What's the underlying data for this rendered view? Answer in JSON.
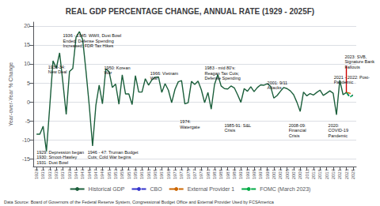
{
  "chart_data": {
    "type": "line",
    "title": "REAL GDP PERCENTAGE CHANGE, ANNUAL RATE (1929 - 2025F)",
    "ylabel": "Year-over-Year % Change",
    "xlim": [
      1928,
      2026
    ],
    "xticks": [
      1929,
      1931,
      1933,
      1935,
      1937,
      1939,
      1941,
      1943,
      1945,
      1947,
      1949,
      1951,
      1953,
      1955,
      1957,
      1959,
      1961,
      1963,
      1965,
      1967,
      1969,
      1971,
      1973,
      1975,
      1977,
      1979,
      1981,
      1983,
      1985,
      1987,
      1989,
      1991,
      1993,
      1995,
      1997,
      1999,
      2001,
      2003,
      2005,
      2007,
      2009,
      2011,
      2013,
      2015,
      2017,
      2019,
      2021,
      2023,
      2025
    ],
    "ylim": [
      -17,
      21
    ],
    "yticks": [
      -15,
      -10,
      -5,
      0,
      5,
      10,
      15,
      20
    ],
    "grid": true,
    "legend": "bottom",
    "series": [
      {
        "name": "Historical GDP",
        "color": "#1a5e3a",
        "line_style": "solid",
        "x": [
          1929,
          1930,
          1931,
          1932,
          1933,
          1934,
          1935,
          1936,
          1937,
          1938,
          1939,
          1940,
          1941,
          1942,
          1943,
          1944,
          1945,
          1946,
          1947,
          1948,
          1949,
          1950,
          1951,
          1952,
          1953,
          1954,
          1955,
          1956,
          1957,
          1958,
          1959,
          1960,
          1961,
          1962,
          1963,
          1964,
          1965,
          1966,
          1967,
          1968,
          1969,
          1970,
          1971,
          1972,
          1973,
          1974,
          1975,
          1976,
          1977,
          1978,
          1979,
          1980,
          1981,
          1982,
          1983,
          1984,
          1985,
          1986,
          1987,
          1988,
          1989,
          1990,
          1991,
          1992,
          1993,
          1994,
          1995,
          1996,
          1997,
          1998,
          1999,
          2000,
          2001,
          2002,
          2003,
          2004,
          2005,
          2006,
          2007,
          2008,
          2009,
          2010,
          2011,
          2012,
          2013,
          2014,
          2015,
          2016,
          2017,
          2018,
          2019,
          2020,
          2021,
          2022,
          2023
        ],
        "values": [
          -8.5,
          -8.5,
          -6.4,
          -13.0,
          -1.3,
          10.8,
          8.9,
          12.9,
          5.1,
          -3.3,
          8.0,
          8.8,
          17.1,
          18.5,
          16.4,
          8.1,
          -1.0,
          -11.6,
          -0.9,
          4.4,
          -0.5,
          8.7,
          8.0,
          3.8,
          4.7,
          -0.6,
          7.1,
          2.1,
          2.1,
          -0.7,
          6.9,
          2.6,
          2.6,
          6.1,
          4.4,
          5.8,
          6.5,
          6.6,
          2.5,
          4.8,
          3.1,
          -0.2,
          3.3,
          5.3,
          5.6,
          -0.5,
          -0.2,
          5.4,
          4.6,
          5.5,
          3.2,
          -0.2,
          2.5,
          -1.9,
          4.6,
          7.2,
          4.2,
          3.5,
          3.4,
          4.2,
          3.7,
          1.9,
          -0.1,
          3.5,
          2.8,
          4.0,
          2.7,
          3.8,
          4.5,
          4.4,
          4.8,
          4.1,
          1.0,
          1.7,
          2.8,
          3.8,
          3.5,
          2.9,
          1.9,
          -0.1,
          -2.5,
          2.6,
          1.6,
          2.2,
          1.8,
          2.5,
          3.1,
          1.7,
          2.3,
          2.9,
          2.3,
          -3.4,
          5.7,
          1.9,
          2.5
        ]
      },
      {
        "name": "CBO",
        "color": "#3333cc",
        "line_style": "dashed",
        "x": [
          2023,
          2024,
          2025
        ],
        "values": [
          2.5,
          1.5,
          1.7
        ]
      },
      {
        "name": "External Provider 1",
        "color": "#cc6600",
        "line_style": "dashed",
        "x": [
          2023,
          2024,
          2025
        ],
        "values": [
          2.5,
          2.3,
          2.0
        ]
      },
      {
        "name": "FOMC (March 2023)",
        "color": "#00aa44",
        "line_style": "dashed",
        "x": [
          2023,
          2024,
          2025
        ],
        "values": [
          2.5,
          1.2,
          1.8
        ]
      },
      {
        "color": "#cc0000",
        "line_style": "solid",
        "x": [
          2023,
          2023
        ],
        "values": [
          2.5,
          9.5
        ]
      }
    ],
    "annotations": [
      {
        "x": 1932.5,
        "y": 7.2,
        "text": "1933-34:\nNew Deal"
      },
      {
        "x": 1937,
        "y": 14.0,
        "text": "1936 - 1945: WWII, Dust Bowl\nEnded, Defense Spending\nIncreased; FDR Tax Hikes"
      },
      {
        "x": 1949.5,
        "y": 7.0,
        "text": "1950: Korean\nWar"
      },
      {
        "x": 1963.5,
        "y": 5.5,
        "text": "1966: Vietnam\nWar"
      },
      {
        "x": 1980,
        "y": 5.5,
        "text": "1983 - mid 80's:\nReagan Tax Cuts;\nDefense Spending"
      },
      {
        "x": 1999,
        "y": 3.0,
        "text": "2001: 9/11\nAttacks"
      },
      {
        "x": 2019.2,
        "y": 4.5,
        "text": "2021 - 2022: Post-\nPandemic"
      },
      {
        "x": 2022.5,
        "y": 8.5,
        "text": "2023: SVB,\nSignature Bank\nFallouts"
      },
      {
        "x": 1972.5,
        "y": -4.5,
        "text": "1974:\nWatergate"
      },
      {
        "x": 1929,
        "y": -12.5,
        "text": "1929: Depression began\n1930: Smoot-Hawley\n1931: Dust Bowl"
      },
      {
        "x": 1944.5,
        "y": -12.5,
        "text": "1946 - 47: Truman Budget\nCuts; Cold War begins"
      },
      {
        "x": 1986,
        "y": -5.5,
        "text": "1985-91: S&L\nCrisis"
      },
      {
        "x": 2005.5,
        "y": -5.5,
        "text": "2008-09:\nFinancial\nCrisis"
      },
      {
        "x": 2017.5,
        "y": -5.5,
        "text": "2020:\nCOVID-19\nPandemic"
      }
    ],
    "footnote": "Data Source: Board of Governors of the Federal Reserve System, Congressional Budget Office and External Provider Used by FCSAmerica"
  }
}
